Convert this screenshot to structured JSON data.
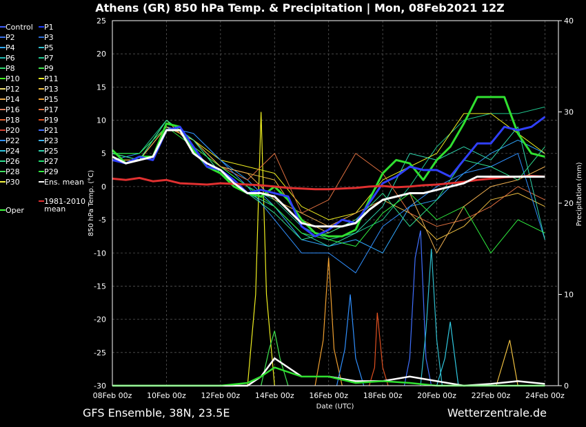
{
  "chart_data": {
    "type": "line",
    "title": "Athens  (GR)  850 hPa Temp. & Precipitation | Mon, 08Feb2021 12Z",
    "xlabel": "Date (UTC)",
    "ylabel": "850 hPa Temp. (°C)",
    "y2label": "Precipitation (mm)",
    "ylim": [
      -30,
      25
    ],
    "y2lim": [
      0,
      40
    ],
    "yticks": [
      "25",
      "20",
      "15",
      "10",
      "5",
      "0",
      "-5",
      "-10",
      "-15",
      "-20",
      "-25",
      "-30"
    ],
    "y2ticks": [
      "40",
      "30",
      "20",
      "10",
      "0"
    ],
    "xticks": [
      "08Feb 00z",
      "10Feb 00z",
      "12Feb 00z",
      "14Feb 00z",
      "16Feb 00z",
      "18Feb 00z",
      "20Feb 00z",
      "22Feb 00z",
      "24Feb 00z"
    ],
    "x_days": [
      0,
      2,
      4,
      6,
      8,
      10,
      12,
      14,
      16
    ],
    "grid": true,
    "footer_left": "GFS Ensemble, 38N, 23.5E",
    "footer_right": "Wetterzentrale.de",
    "legend": [
      {
        "name": "Control",
        "color": "#4060ff"
      },
      {
        "name": "P1",
        "color": "#2040ff"
      },
      {
        "name": "P2",
        "color": "#3a70e8"
      },
      {
        "name": "P3",
        "color": "#2f6fd8"
      },
      {
        "name": "P4",
        "color": "#30a8ff"
      },
      {
        "name": "P5",
        "color": "#30c0d0"
      },
      {
        "name": "P6",
        "color": "#20b8b0"
      },
      {
        "name": "P7",
        "color": "#20c890"
      },
      {
        "name": "P8",
        "color": "#30d870"
      },
      {
        "name": "P9",
        "color": "#40e850"
      },
      {
        "name": "P10",
        "color": "#40ff20"
      },
      {
        "name": "P11",
        "color": "#f0f020"
      },
      {
        "name": "P12",
        "color": "#f0e070"
      },
      {
        "name": "P13",
        "color": "#f0c040"
      },
      {
        "name": "P14",
        "color": "#f0b050"
      },
      {
        "name": "P15",
        "color": "#f0a030"
      },
      {
        "name": "P16",
        "color": "#e08060"
      },
      {
        "name": "P17",
        "color": "#e07040"
      },
      {
        "name": "P18",
        "color": "#e06030"
      },
      {
        "name": "P19",
        "color": "#e05020"
      },
      {
        "name": "P20",
        "color": "#d04030"
      },
      {
        "name": "P21",
        "color": "#4070ff"
      },
      {
        "name": "P22",
        "color": "#3090ff"
      },
      {
        "name": "P23",
        "color": "#40b8ff"
      },
      {
        "name": "P24",
        "color": "#30c8e0"
      },
      {
        "name": "P25",
        "color": "#30d8b0"
      },
      {
        "name": "P26",
        "color": "#30e090"
      },
      {
        "name": "P27",
        "color": "#20e070"
      },
      {
        "name": "P28",
        "color": "#40e060"
      },
      {
        "name": "P29",
        "color": "#30f040"
      },
      {
        "name": "P30",
        "color": "#f8f840"
      },
      {
        "name": "Ens. mean",
        "color": "#ffffff"
      },
      {
        "name": "1981-2010 mean",
        "color": "#e03030"
      },
      {
        "name": "Oper",
        "color": "#40ff40"
      }
    ],
    "series": [
      {
        "name": "Oper",
        "color": "#30e030",
        "x": [
          0,
          0.5,
          1,
          1.5,
          2,
          2.5,
          3,
          3.5,
          4,
          4.5,
          5,
          5.5,
          6,
          6.5,
          7,
          7.5,
          8,
          8.5,
          9,
          9.5,
          10,
          10.5,
          11,
          11.5,
          12,
          12.5,
          13,
          13.5,
          14,
          14.5,
          15,
          15.5,
          16
        ],
        "y": [
          5.5,
          3.5,
          4.5,
          4.5,
          9.5,
          9,
          5.5,
          3,
          2,
          0,
          -1,
          -1.5,
          0,
          -2,
          -5,
          -7,
          -7.5,
          -7.5,
          -6.5,
          -2,
          2,
          4,
          3.5,
          1,
          4,
          6,
          9.5,
          13.5,
          13.5,
          13.5,
          8,
          5,
          4.5
        ]
      },
      {
        "name": "Control",
        "color": "#3040ff",
        "x": [
          0,
          0.5,
          1,
          1.5,
          2,
          2.5,
          3,
          3.5,
          4,
          4.5,
          5,
          5.5,
          6,
          6.5,
          7,
          7.5,
          8,
          8.5,
          9,
          9.5,
          10,
          10.5,
          11,
          11.5,
          12,
          12.5,
          13,
          13.5,
          14,
          14.5,
          15,
          15.5,
          16
        ],
        "y": [
          4,
          3.5,
          4.5,
          4,
          8.5,
          9,
          6,
          3,
          2.5,
          1,
          -1,
          -0.5,
          -1,
          -1.5,
          -6,
          -7.5,
          -6.5,
          -5,
          -5.5,
          -2.5,
          0.5,
          1.5,
          3,
          2.5,
          2.5,
          1.5,
          4,
          6.5,
          6.5,
          9,
          8.5,
          9,
          10.5
        ]
      },
      {
        "name": "Ens. mean",
        "color": "#ffffff",
        "x": [
          0,
          0.5,
          1,
          1.5,
          2,
          2.5,
          3,
          3.5,
          4,
          4.5,
          5,
          5.5,
          6,
          6.5,
          7,
          7.5,
          8,
          8.5,
          9,
          9.5,
          10,
          10.5,
          11,
          11.5,
          12,
          12.5,
          13,
          13.5,
          14,
          14.5,
          15,
          15.5,
          16
        ],
        "y": [
          4.5,
          3.5,
          4,
          4.5,
          8.5,
          8.5,
          5,
          3.5,
          2.5,
          0.5,
          -1,
          -1,
          -1.5,
          -3.5,
          -5.5,
          -6,
          -6,
          -6,
          -5.5,
          -3.5,
          -2,
          -1.5,
          -1,
          -1,
          -0.5,
          0,
          0.5,
          1.5,
          1.5,
          1.5,
          1.5,
          1.5,
          1.5
        ]
      },
      {
        "name": "1981-2010 mean",
        "color": "#e03030",
        "x": [
          0,
          0.5,
          1,
          1.5,
          2,
          2.5,
          3,
          3.5,
          4,
          4.5,
          5,
          5.5,
          6,
          6.5,
          7,
          7.5,
          8,
          8.5,
          9,
          9.5,
          10,
          10.5,
          11,
          11.5,
          12,
          12.5,
          13,
          13.5,
          14,
          14.5,
          15,
          15.5,
          16
        ],
        "y": [
          1.2,
          1,
          1.3,
          0.8,
          1,
          0.5,
          0.4,
          0.3,
          0.5,
          0.4,
          0.3,
          0.2,
          0,
          -0.2,
          -0.3,
          -0.4,
          -0.4,
          -0.3,
          -0.2,
          0,
          0.1,
          -0.1,
          0,
          0.2,
          0.3,
          0.5,
          0.7,
          1,
          1.2,
          1.4,
          1.5,
          1.6,
          1.5
        ]
      },
      {
        "name": "P4",
        "color": "#30a8ff",
        "x": [
          0,
          1,
          2,
          3,
          4,
          5,
          6,
          7,
          8,
          9,
          10,
          11,
          12,
          13,
          14,
          15,
          16
        ],
        "y": [
          5,
          4,
          9,
          8,
          4,
          1,
          -3,
          -8,
          -9,
          -8,
          -10,
          -3,
          -2,
          2,
          5,
          7,
          5
        ]
      },
      {
        "name": "P7",
        "color": "#20c890",
        "x": [
          0,
          1,
          2,
          3,
          4,
          5,
          6,
          7,
          8,
          9,
          10,
          11,
          12,
          13,
          14,
          15,
          16
        ],
        "y": [
          5,
          5,
          10,
          7,
          3,
          0,
          -2,
          -6,
          -8,
          -7,
          -5,
          0,
          6,
          10,
          11,
          11,
          12
        ]
      },
      {
        "name": "P11",
        "color": "#f0f020",
        "x": [
          0,
          1,
          2,
          3,
          4,
          5,
          6,
          7,
          8,
          9,
          10,
          11,
          12,
          13,
          14,
          15,
          16
        ],
        "y": [
          4,
          4,
          9,
          7,
          4,
          3,
          2,
          -3,
          -5,
          -4,
          1,
          3,
          5,
          11,
          11,
          8,
          5
        ]
      },
      {
        "name": "P13",
        "color": "#f0c040",
        "x": [
          0,
          1,
          2,
          3,
          4,
          5,
          6,
          7,
          8,
          9,
          10,
          11,
          12,
          13,
          14,
          15,
          16
        ],
        "y": [
          4,
          4,
          10,
          6,
          3,
          2,
          1,
          -5,
          -7,
          -5,
          -2,
          -4,
          -8,
          -6,
          -2,
          -1,
          -3
        ]
      },
      {
        "name": "P17",
        "color": "#e07040",
        "x": [
          0,
          1,
          2,
          3,
          4,
          5,
          6,
          7,
          8,
          9,
          10,
          11,
          12,
          13,
          14,
          15,
          16
        ],
        "y": [
          5,
          4,
          9,
          7,
          3,
          1,
          5,
          -4,
          -2,
          5,
          2,
          -4,
          -6,
          -5,
          -3,
          0,
          -2
        ]
      },
      {
        "name": "P22",
        "color": "#3090ff",
        "x": [
          0,
          1,
          2,
          3,
          4,
          5,
          6,
          7,
          8,
          9,
          10,
          11,
          12,
          13,
          14,
          15,
          16
        ],
        "y": [
          4,
          5,
          9,
          8,
          4,
          0,
          -5,
          -10,
          -10,
          -13,
          -6,
          -3,
          0,
          2,
          3,
          5,
          -8
        ]
      },
      {
        "name": "P25",
        "color": "#30d8b0",
        "x": [
          0,
          1,
          2,
          3,
          4,
          5,
          6,
          7,
          8,
          9,
          10,
          11,
          12,
          13,
          14,
          15,
          16
        ],
        "y": [
          5,
          4,
          10,
          7,
          2,
          -1,
          -3,
          -7,
          -9,
          -7,
          -3,
          5,
          4,
          6,
          4,
          9,
          -8
        ]
      },
      {
        "name": "P29",
        "color": "#30f040",
        "x": [
          0,
          1,
          2,
          3,
          4,
          5,
          6,
          7,
          8,
          9,
          10,
          11,
          12,
          13,
          14,
          15,
          16
        ],
        "y": [
          5,
          5,
          9,
          6,
          3,
          0,
          -3,
          -7,
          -8,
          -9,
          -4,
          -1,
          -5,
          -3,
          -10,
          -5,
          -7
        ]
      },
      {
        "name": "P14",
        "color": "#f0b050",
        "x": [
          0,
          1,
          2,
          3,
          4,
          5,
          6,
          7,
          8,
          9,
          10,
          11,
          12,
          13,
          14,
          15,
          16
        ],
        "y": [
          4,
          4,
          9,
          7,
          3,
          2,
          -2,
          -4,
          -6,
          -4,
          -2,
          -1,
          -10,
          -3,
          0,
          1,
          3
        ]
      },
      {
        "name": "P26",
        "color": "#30e090",
        "x": [
          0,
          1,
          2,
          3,
          4,
          5,
          6,
          7,
          8,
          9,
          10,
          11,
          12,
          13,
          14,
          15,
          16
        ],
        "y": [
          5,
          4,
          10,
          7,
          2,
          -1,
          -4,
          -8,
          -7,
          -5,
          -1,
          -6,
          -2,
          4,
          3,
          1,
          6
        ]
      }
    ],
    "precip_series": [
      {
        "name": "P11",
        "color": "#f0f020",
        "x": [
          5,
          5.3,
          5.5,
          5.7,
          6
        ],
        "y": [
          0,
          10,
          30,
          10,
          0
        ]
      },
      {
        "name": "P15",
        "color": "#f0a030",
        "x": [
          7.5,
          7.8,
          8,
          8.2,
          8.5
        ],
        "y": [
          0,
          5,
          14,
          4,
          0
        ]
      },
      {
        "name": "P22",
        "color": "#3090ff",
        "x": [
          8.3,
          8.6,
          8.8,
          9,
          9.3
        ],
        "y": [
          0,
          4,
          10,
          3,
          0
        ]
      },
      {
        "name": "P19",
        "color": "#e05020",
        "x": [
          9.5,
          9.7,
          9.8,
          10,
          10.2
        ],
        "y": [
          0,
          2,
          8,
          2,
          0
        ]
      },
      {
        "name": "P21",
        "color": "#4070ff",
        "x": [
          10.8,
          11,
          11.2,
          11.4,
          11.6,
          11.8
        ],
        "y": [
          0,
          3,
          14,
          17,
          3,
          0
        ]
      },
      {
        "name": "P5",
        "color": "#30c0d0",
        "x": [
          11.4,
          11.6,
          11.8,
          12,
          12.2
        ],
        "y": [
          0,
          6,
          15,
          5,
          0
        ]
      },
      {
        "name": "P9",
        "color": "#40e850",
        "x": [
          5.5,
          5.8,
          6,
          6.2,
          6.5
        ],
        "y": [
          0,
          4,
          6,
          3,
          0
        ]
      },
      {
        "name": "P24",
        "color": "#30c8e0",
        "x": [
          12,
          12.3,
          12.5,
          12.8
        ],
        "y": [
          0,
          3,
          7,
          0
        ]
      },
      {
        "name": "P13",
        "color": "#f0c040",
        "x": [
          14.2,
          14.5,
          14.7,
          15
        ],
        "y": [
          0,
          3,
          5,
          0
        ]
      },
      {
        "name": "Ens. mean",
        "color": "#ffffff",
        "x": [
          0,
          2,
          4,
          5,
          5.5,
          6,
          7,
          8,
          9,
          10,
          11,
          12,
          13,
          14,
          15,
          16
        ],
        "y": [
          0,
          0,
          0,
          0,
          1,
          3,
          1,
          1,
          0.5,
          0.5,
          1,
          0.5,
          0,
          0.2,
          0.5,
          0.2
        ]
      },
      {
        "name": "Oper",
        "color": "#30e030",
        "x": [
          0,
          2,
          4,
          5,
          5.5,
          6,
          7,
          8,
          9,
          10,
          11,
          12,
          13,
          14,
          15,
          16
        ],
        "y": [
          0,
          0,
          0,
          0.3,
          1,
          2,
          1,
          1,
          0.3,
          0.5,
          0.3,
          0,
          0,
          0,
          0,
          0
        ]
      }
    ]
  }
}
